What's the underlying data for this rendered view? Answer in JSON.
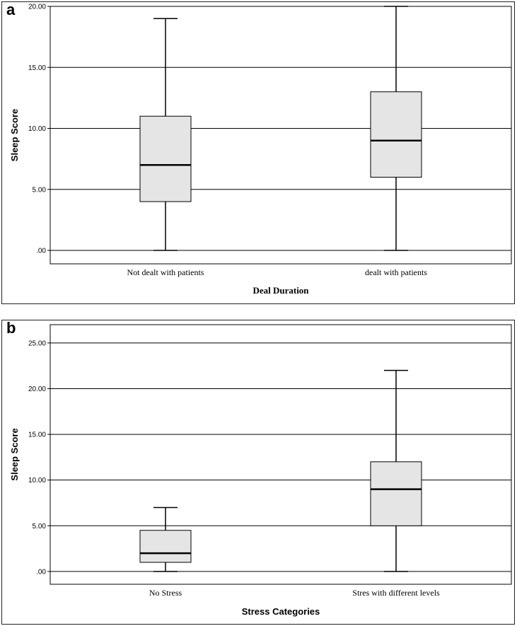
{
  "chart_data": [
    {
      "panel_label": "a",
      "type": "box",
      "ylabel": "Sleep Score",
      "xlabel": "Deal Duration",
      "ylim": [
        -1.1,
        20
      ],
      "yticks": [
        ".00",
        "5.00",
        "10.00",
        "15.00",
        "20.00"
      ],
      "ytick_values": [
        0,
        5,
        10,
        15,
        20
      ],
      "grid": true,
      "categories": [
        "Not dealt with patients",
        "dealt with patients"
      ],
      "boxes": [
        {
          "min": 0,
          "q1": 4,
          "median": 7,
          "q3": 11,
          "max": 19
        },
        {
          "min": 0,
          "q1": 6,
          "median": 9,
          "q3": 13,
          "max": 20
        }
      ],
      "box_fill": "#e5e5e5"
    },
    {
      "panel_label": "b",
      "type": "box",
      "ylabel": "Sleep Score",
      "xlabel": "Stress Categories",
      "ylim": [
        -1.4,
        27
      ],
      "yticks": [
        ".00",
        "5.00",
        "10.00",
        "15.00",
        "20.00",
        "25.00"
      ],
      "ytick_values": [
        0,
        5,
        10,
        15,
        20,
        25
      ],
      "grid": true,
      "categories": [
        "No Stress",
        "Stres with different levels"
      ],
      "boxes": [
        {
          "min": 0,
          "q1": 1,
          "median": 2,
          "q3": 4.5,
          "max": 7
        },
        {
          "min": 0,
          "q1": 5,
          "median": 9,
          "q3": 12,
          "max": 22
        }
      ],
      "box_fill": "#e5e5e5"
    }
  ]
}
